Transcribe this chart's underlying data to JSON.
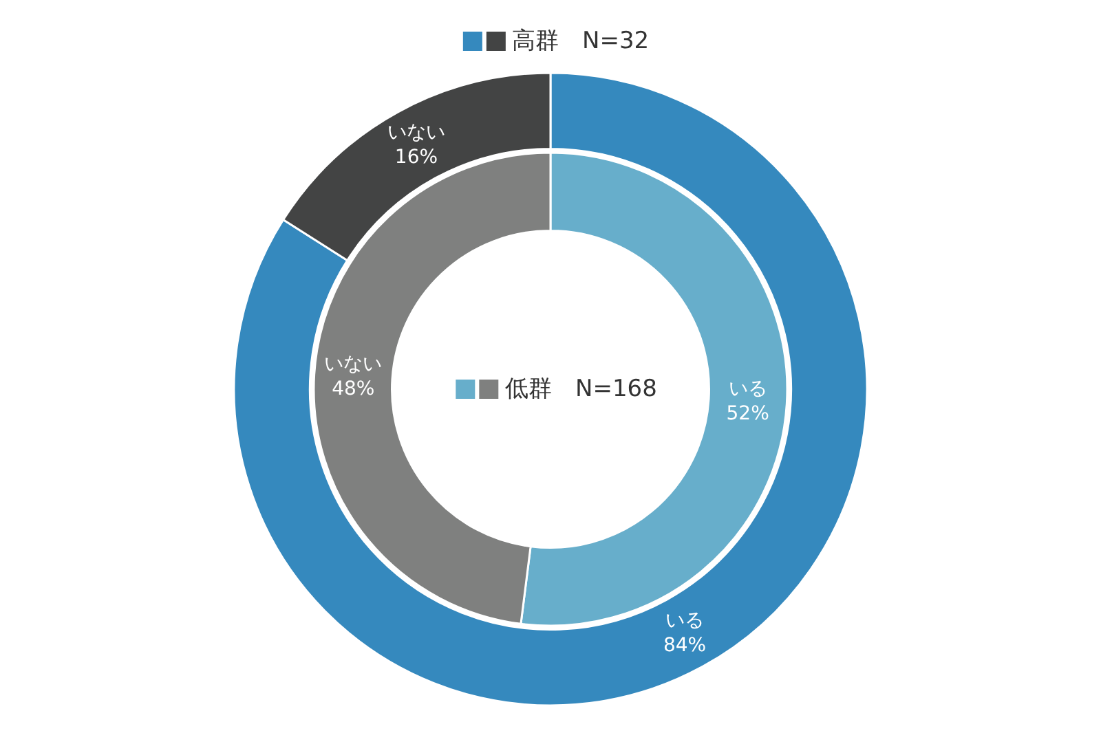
{
  "chart_data": {
    "type": "donut",
    "categories": [
      "いる",
      "いない"
    ],
    "legend": "top",
    "series": [
      {
        "name": "高群　N=32",
        "colors": [
          "#3589be",
          "#434444"
        ],
        "values": [
          84,
          16
        ],
        "value_labels": [
          "84%",
          "16%"
        ]
      },
      {
        "name": "低群　N=168",
        "colors": [
          "#67aecb",
          "#7f807f"
        ],
        "values": [
          52,
          48
        ],
        "value_labels": [
          "52%",
          "48%"
        ]
      }
    ]
  }
}
